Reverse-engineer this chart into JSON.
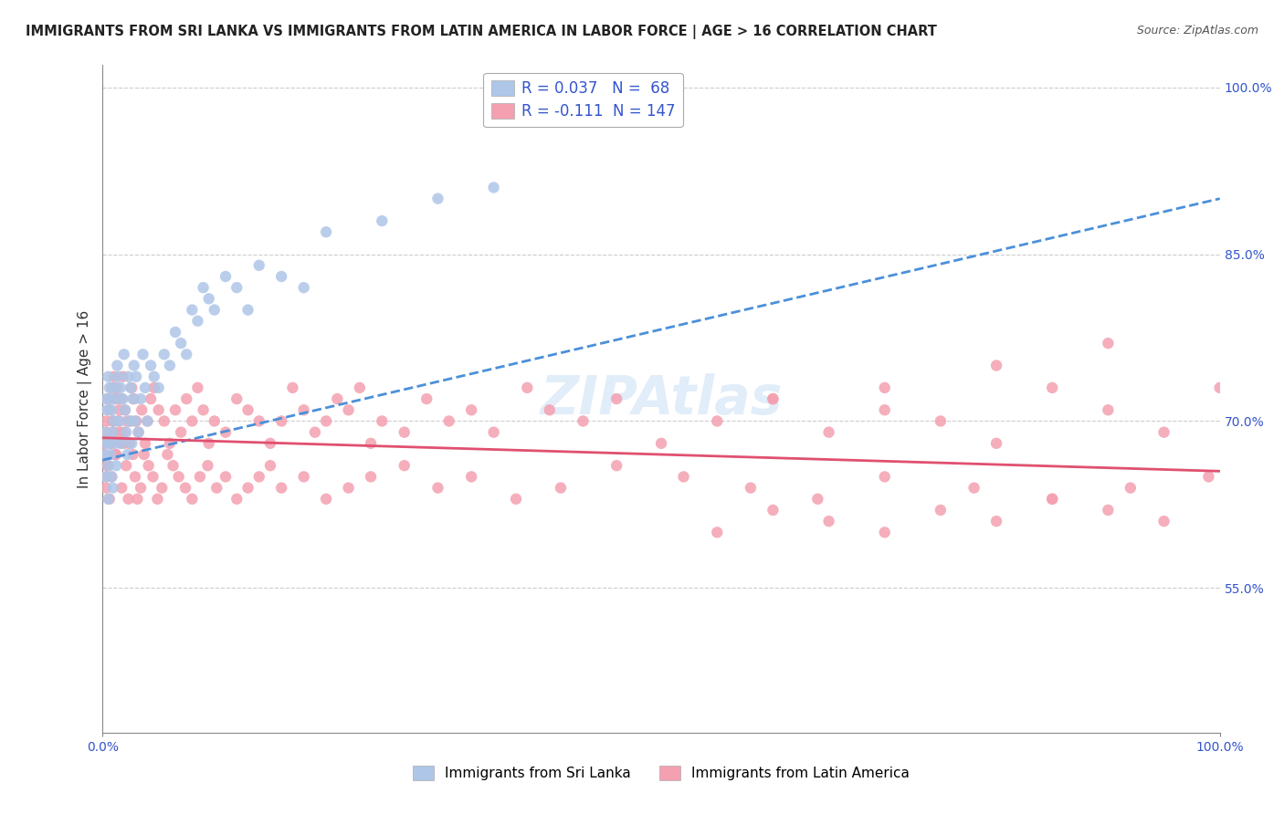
{
  "title": "IMMIGRANTS FROM SRI LANKA VS IMMIGRANTS FROM LATIN AMERICA IN LABOR FORCE | AGE > 16 CORRELATION CHART",
  "source": "Source: ZipAtlas.com",
  "xlabel": "",
  "ylabel": "In Labor Force | Age > 16",
  "xlim": [
    0.0,
    1.0
  ],
  "ylim": [
    0.42,
    1.02
  ],
  "yticks": [
    0.55,
    0.7,
    0.85,
    1.0
  ],
  "ytick_labels": [
    "55.0%",
    "70.0%",
    "85.0%",
    "100.0%"
  ],
  "xticks": [
    0.0,
    1.0
  ],
  "xtick_labels": [
    "0.0%",
    "100.0%"
  ],
  "legend_sri_lanka_R": "R = 0.037",
  "legend_sri_lanka_N": "N =  68",
  "legend_latin_R": "R = -0.111",
  "legend_latin_N": "N = 147",
  "sri_lanka_color": "#aec6e8",
  "latin_color": "#f4a0b0",
  "sri_lanka_line_color": "#4a90d9",
  "latin_line_color": "#e05070",
  "legend_text_color": "#3355cc",
  "watermark": "ZIPAtlas",
  "background_color": "#ffffff",
  "grid_color": "#cccccc",
  "sri_lanka_x": [
    0.001,
    0.002,
    0.003,
    0.003,
    0.004,
    0.004,
    0.005,
    0.005,
    0.005,
    0.006,
    0.006,
    0.007,
    0.007,
    0.008,
    0.008,
    0.009,
    0.009,
    0.01,
    0.01,
    0.011,
    0.012,
    0.013,
    0.013,
    0.014,
    0.015,
    0.016,
    0.017,
    0.018,
    0.019,
    0.02,
    0.021,
    0.022,
    0.023,
    0.024,
    0.025,
    0.026,
    0.027,
    0.028,
    0.029,
    0.03,
    0.032,
    0.034,
    0.036,
    0.038,
    0.04,
    0.043,
    0.046,
    0.05,
    0.055,
    0.06,
    0.065,
    0.07,
    0.075,
    0.08,
    0.085,
    0.09,
    0.095,
    0.1,
    0.11,
    0.12,
    0.13,
    0.14,
    0.16,
    0.18,
    0.2,
    0.25,
    0.3,
    0.35
  ],
  "sri_lanka_y": [
    0.67,
    0.69,
    0.72,
    0.65,
    0.68,
    0.71,
    0.74,
    0.63,
    0.66,
    0.73,
    0.68,
    0.72,
    0.67,
    0.71,
    0.65,
    0.69,
    0.64,
    0.7,
    0.73,
    0.68,
    0.66,
    0.72,
    0.75,
    0.74,
    0.7,
    0.73,
    0.68,
    0.72,
    0.76,
    0.71,
    0.69,
    0.67,
    0.74,
    0.7,
    0.73,
    0.68,
    0.72,
    0.75,
    0.7,
    0.74,
    0.69,
    0.72,
    0.76,
    0.73,
    0.7,
    0.75,
    0.74,
    0.73,
    0.76,
    0.75,
    0.78,
    0.77,
    0.76,
    0.8,
    0.79,
    0.82,
    0.81,
    0.8,
    0.83,
    0.82,
    0.8,
    0.84,
    0.83,
    0.82,
    0.87,
    0.88,
    0.9,
    0.91
  ],
  "latin_x": [
    0.001,
    0.002,
    0.003,
    0.003,
    0.004,
    0.005,
    0.005,
    0.006,
    0.007,
    0.008,
    0.009,
    0.01,
    0.01,
    0.011,
    0.012,
    0.013,
    0.014,
    0.015,
    0.016,
    0.017,
    0.018,
    0.019,
    0.02,
    0.022,
    0.024,
    0.026,
    0.028,
    0.03,
    0.032,
    0.035,
    0.038,
    0.04,
    0.043,
    0.046,
    0.05,
    0.055,
    0.06,
    0.065,
    0.07,
    0.075,
    0.08,
    0.085,
    0.09,
    0.095,
    0.1,
    0.11,
    0.12,
    0.13,
    0.14,
    0.15,
    0.16,
    0.17,
    0.18,
    0.19,
    0.2,
    0.21,
    0.22,
    0.23,
    0.24,
    0.25,
    0.27,
    0.29,
    0.31,
    0.33,
    0.35,
    0.38,
    0.4,
    0.43,
    0.46,
    0.5,
    0.55,
    0.6,
    0.65,
    0.7,
    0.75,
    0.8,
    0.85,
    0.9,
    0.95,
    1.0,
    0.003,
    0.004,
    0.006,
    0.007,
    0.008,
    0.009,
    0.011,
    0.013,
    0.015,
    0.017,
    0.019,
    0.021,
    0.023,
    0.025,
    0.027,
    0.029,
    0.031,
    0.034,
    0.037,
    0.041,
    0.045,
    0.049,
    0.053,
    0.058,
    0.063,
    0.068,
    0.074,
    0.08,
    0.087,
    0.094,
    0.102,
    0.11,
    0.12,
    0.13,
    0.14,
    0.15,
    0.16,
    0.18,
    0.2,
    0.22,
    0.24,
    0.27,
    0.3,
    0.33,
    0.37,
    0.41,
    0.46,
    0.52,
    0.58,
    0.64,
    0.7,
    0.78,
    0.85,
    0.92,
    0.99,
    0.55,
    0.6,
    0.65,
    0.7,
    0.75,
    0.8,
    0.85,
    0.9,
    0.95,
    0.6,
    0.7,
    0.8,
    0.9
  ],
  "latin_y": [
    0.68,
    0.67,
    0.65,
    0.7,
    0.69,
    0.72,
    0.66,
    0.71,
    0.68,
    0.73,
    0.7,
    0.69,
    0.74,
    0.72,
    0.67,
    0.73,
    0.7,
    0.71,
    0.68,
    0.72,
    0.74,
    0.69,
    0.71,
    0.7,
    0.68,
    0.73,
    0.72,
    0.7,
    0.69,
    0.71,
    0.68,
    0.7,
    0.72,
    0.73,
    0.71,
    0.7,
    0.68,
    0.71,
    0.69,
    0.72,
    0.7,
    0.73,
    0.71,
    0.68,
    0.7,
    0.69,
    0.72,
    0.71,
    0.7,
    0.68,
    0.7,
    0.73,
    0.71,
    0.69,
    0.7,
    0.72,
    0.71,
    0.73,
    0.68,
    0.7,
    0.69,
    0.72,
    0.7,
    0.71,
    0.69,
    0.73,
    0.71,
    0.7,
    0.72,
    0.68,
    0.7,
    0.72,
    0.69,
    0.71,
    0.7,
    0.68,
    0.73,
    0.71,
    0.69,
    0.73,
    0.64,
    0.66,
    0.63,
    0.68,
    0.65,
    0.7,
    0.67,
    0.72,
    0.69,
    0.64,
    0.68,
    0.66,
    0.63,
    0.7,
    0.67,
    0.65,
    0.63,
    0.64,
    0.67,
    0.66,
    0.65,
    0.63,
    0.64,
    0.67,
    0.66,
    0.65,
    0.64,
    0.63,
    0.65,
    0.66,
    0.64,
    0.65,
    0.63,
    0.64,
    0.65,
    0.66,
    0.64,
    0.65,
    0.63,
    0.64,
    0.65,
    0.66,
    0.64,
    0.65,
    0.63,
    0.64,
    0.66,
    0.65,
    0.64,
    0.63,
    0.65,
    0.64,
    0.63,
    0.64,
    0.65,
    0.6,
    0.62,
    0.61,
    0.6,
    0.62,
    0.61,
    0.63,
    0.62,
    0.61,
    0.72,
    0.73,
    0.75,
    0.77
  ],
  "sri_lanka_trend_x": [
    0.0,
    1.0
  ],
  "sri_lanka_trend_y_start": 0.665,
  "sri_lanka_trend_y_end": 0.9,
  "latin_trend_y_start": 0.685,
  "latin_trend_y_end": 0.655
}
